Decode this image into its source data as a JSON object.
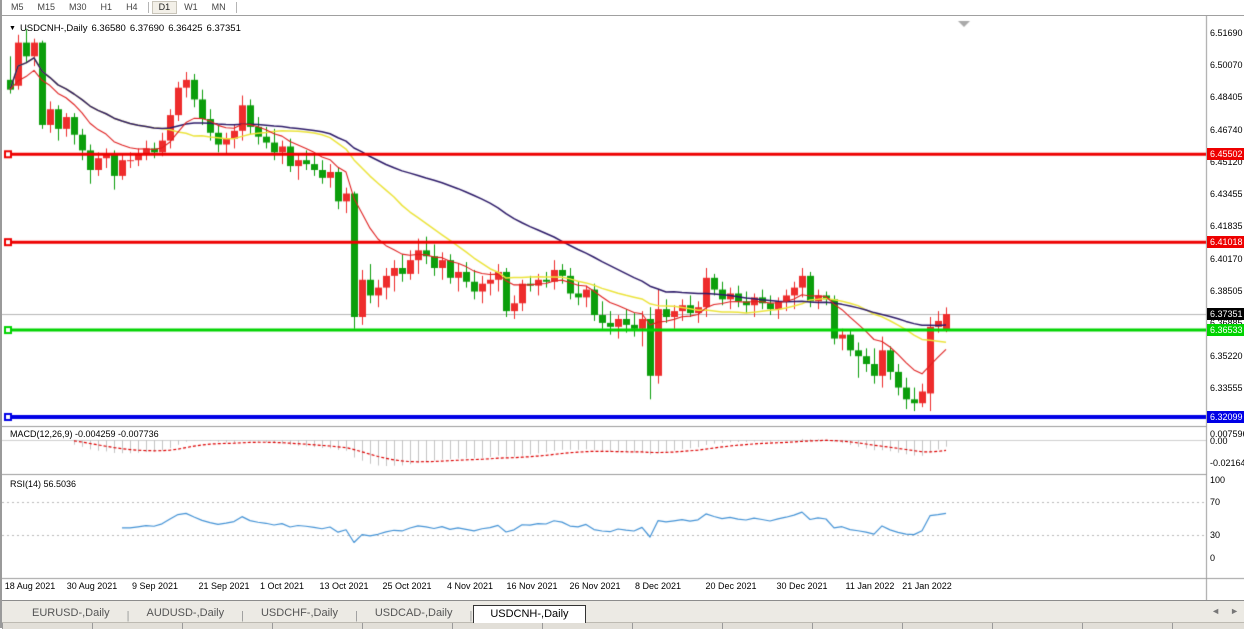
{
  "toolbar": {
    "timeframes": [
      {
        "label": "M5",
        "active": false
      },
      {
        "label": "M15",
        "active": false
      },
      {
        "label": "M30",
        "active": false
      },
      {
        "label": "H1",
        "active": false
      },
      {
        "label": "H4",
        "active": false
      },
      {
        "label": "D1",
        "active": true
      },
      {
        "label": "W1",
        "active": false
      },
      {
        "label": "MN",
        "active": false
      }
    ]
  },
  "chart": {
    "title": {
      "dropdown_icon": "▼",
      "symbol": "USDCNH-,Daily",
      "open": "6.36580",
      "high": "6.37690",
      "low": "6.36425",
      "close": "6.37351"
    },
    "price_axis_labels": [
      "6.51690",
      "6.50070",
      "6.48405",
      "6.46740",
      "6.45120",
      "6.43455",
      "6.41835",
      "6.40170",
      "6.38505",
      "6.36885",
      "6.35220",
      "6.33555"
    ],
    "hlines": [
      {
        "label": "6.45502",
        "value": 6.45502,
        "color": "#ee0000",
        "width": 3
      },
      {
        "label": "6.41018",
        "value": 6.41018,
        "color": "#ee0000",
        "width": 3
      },
      {
        "label": "6.36533",
        "value": 6.36533,
        "color": "#00d300",
        "width": 3
      },
      {
        "label": "6.32099",
        "value": 6.32099,
        "color": "#0000e6",
        "width": 4
      }
    ],
    "current_price": {
      "label": "6.37351",
      "value": 6.37351,
      "badge_color": "#000000",
      "line_color": "#b4b4b4"
    },
    "date_labels": [
      "18 Aug 2021",
      "30 Aug 2021",
      "9 Sep 2021",
      "21 Sep 2021",
      "1 Oct 2021",
      "13 Oct 2021",
      "25 Oct 2021",
      "4 Nov 2021",
      "16 Nov 2021",
      "26 Nov 2021",
      "8 Dec 2021",
      "20 Dec 2021",
      "30 Dec 2021",
      "11 Jan 2022",
      "21 Jan 2022"
    ],
    "colors": {
      "candle_up": "#ee2c2c",
      "candle_down": "#0b9e0b",
      "ma_fast": "#e02020",
      "ma_mid": "#ece43c",
      "ma_slow": "#2d1b69",
      "macd_hist": "#c4c4c4",
      "macd_signal": "#dd0000",
      "rsi_line": "#4493d6",
      "grid_dashed": "#b8b8b8",
      "separator": "#9c9c9c",
      "scroll_marker": "#aaaaaa"
    }
  },
  "macd_panel": {
    "label": "MACD(12,26,9) -0.004259 -0.007736",
    "axis_labels": [
      "0.007596",
      "0.00",
      "-0.02164"
    ]
  },
  "rsi_panel": {
    "label": "RSI(14) 56.5036",
    "axis_labels": [
      "100",
      "70",
      "30",
      "0"
    ]
  },
  "bottom_tabs": [
    {
      "label": "EURUSD-,Daily",
      "active": false
    },
    {
      "label": "AUDUSD-,Daily",
      "active": false
    },
    {
      "label": "USDCHF-,Daily",
      "active": false
    },
    {
      "label": "USDCAD-,Daily",
      "active": false
    },
    {
      "label": "USDCNH-,Daily",
      "active": true
    }
  ],
  "tab_scroll_icons": {
    "left": "◄",
    "right": "►"
  },
  "chart_data": {
    "type": "candlestick",
    "symbol": "USDCNH",
    "timeframe": "Daily",
    "last_bar": {
      "open": 6.3658,
      "high": 6.3769,
      "low": 6.36425,
      "close": 6.37351
    },
    "support_resistance_levels": [
      6.45502,
      6.41018,
      6.36533,
      6.32099
    ],
    "indicators": [
      {
        "name": "MACD",
        "params": "12,26,9",
        "main": -0.004259,
        "signal": -0.007736,
        "scale_max": 0.007596,
        "scale_min": -0.02164
      },
      {
        "name": "RSI",
        "params": "14",
        "value": 56.5036,
        "levels": [
          70,
          30
        ]
      }
    ],
    "x_range": [
      "18 Aug 2021",
      "28 Jan 2022"
    ],
    "y_range": [
      6.313,
      6.521
    ],
    "candles": [
      [
        6.493,
        6.505,
        6.486,
        6.488
      ],
      [
        6.49,
        6.516,
        6.488,
        6.512
      ],
      [
        6.512,
        6.519,
        6.502,
        6.505
      ],
      [
        6.505,
        6.514,
        6.5,
        6.512
      ],
      [
        6.512,
        6.513,
        6.468,
        6.47
      ],
      [
        6.47,
        6.482,
        6.466,
        6.478
      ],
      [
        6.478,
        6.48,
        6.462,
        6.468
      ],
      [
        6.468,
        6.476,
        6.464,
        6.474
      ],
      [
        6.474,
        6.476,
        6.46,
        6.465
      ],
      [
        6.465,
        6.468,
        6.452,
        6.457
      ],
      [
        6.457,
        6.46,
        6.44,
        6.447
      ],
      [
        6.447,
        6.456,
        6.444,
        6.453
      ],
      [
        6.453,
        6.458,
        6.448,
        6.455
      ],
      [
        6.455,
        6.457,
        6.437,
        6.444
      ],
      [
        6.444,
        6.455,
        6.442,
        6.452
      ],
      [
        6.452,
        6.456,
        6.448,
        6.452
      ],
      [
        6.452,
        6.458,
        6.449,
        6.455
      ],
      [
        6.455,
        6.462,
        6.452,
        6.458
      ],
      [
        6.458,
        6.461,
        6.453,
        6.456
      ],
      [
        6.456,
        6.466,
        6.454,
        6.462
      ],
      [
        6.462,
        6.478,
        6.458,
        6.475
      ],
      [
        6.475,
        6.492,
        6.472,
        6.489
      ],
      [
        6.489,
        6.497,
        6.484,
        6.493
      ],
      [
        6.493,
        6.496,
        6.479,
        6.483
      ],
      [
        6.483,
        6.488,
        6.47,
        6.473
      ],
      [
        6.473,
        6.478,
        6.462,
        6.466
      ],
      [
        6.466,
        6.47,
        6.456,
        6.46
      ],
      [
        6.46,
        6.466,
        6.455,
        6.463
      ],
      [
        6.463,
        6.47,
        6.458,
        6.467
      ],
      [
        6.467,
        6.485,
        6.462,
        6.48
      ],
      [
        6.48,
        6.483,
        6.465,
        6.469
      ],
      [
        6.469,
        6.474,
        6.46,
        6.464
      ],
      [
        6.464,
        6.469,
        6.458,
        6.461
      ],
      [
        6.461,
        6.468,
        6.452,
        6.456
      ],
      [
        6.456,
        6.462,
        6.45,
        6.459
      ],
      [
        6.459,
        6.463,
        6.446,
        6.449
      ],
      [
        6.449,
        6.455,
        6.442,
        6.452
      ],
      [
        6.452,
        6.457,
        6.447,
        6.45
      ],
      [
        6.45,
        6.456,
        6.444,
        6.447
      ],
      [
        6.447,
        6.452,
        6.44,
        6.443
      ],
      [
        6.443,
        6.45,
        6.438,
        6.446
      ],
      [
        6.446,
        6.448,
        6.427,
        6.431
      ],
      [
        6.431,
        6.438,
        6.425,
        6.435
      ],
      [
        6.435,
        6.436,
        6.366,
        6.372
      ],
      [
        6.372,
        6.396,
        6.368,
        6.391
      ],
      [
        6.391,
        6.399,
        6.379,
        6.383
      ],
      [
        6.383,
        6.391,
        6.377,
        6.387
      ],
      [
        6.387,
        6.397,
        6.381,
        6.393
      ],
      [
        6.393,
        6.401,
        6.385,
        6.397
      ],
      [
        6.397,
        6.404,
        6.39,
        6.394
      ],
      [
        6.394,
        6.406,
        6.391,
        6.401
      ],
      [
        6.401,
        6.412,
        6.394,
        6.406
      ],
      [
        6.406,
        6.413,
        6.399,
        6.403
      ],
      [
        6.403,
        6.409,
        6.393,
        6.397
      ],
      [
        6.397,
        6.405,
        6.391,
        6.401
      ],
      [
        6.401,
        6.404,
        6.389,
        6.392
      ],
      [
        6.392,
        6.399,
        6.385,
        6.395
      ],
      [
        6.395,
        6.4,
        6.387,
        6.39
      ],
      [
        6.39,
        6.396,
        6.381,
        6.385
      ],
      [
        6.385,
        6.393,
        6.379,
        6.389
      ],
      [
        6.389,
        6.395,
        6.383,
        6.391
      ],
      [
        6.391,
        6.399,
        6.385,
        6.395
      ],
      [
        6.395,
        6.397,
        6.372,
        6.375
      ],
      [
        6.375,
        6.383,
        6.371,
        6.379
      ],
      [
        6.379,
        6.391,
        6.375,
        6.389
      ],
      [
        6.389,
        6.393,
        6.385,
        6.388
      ],
      [
        6.388,
        6.394,
        6.383,
        6.391
      ],
      [
        6.391,
        6.395,
        6.387,
        6.39
      ],
      [
        6.39,
        6.401,
        6.386,
        6.396
      ],
      [
        6.396,
        6.399,
        6.389,
        6.393
      ],
      [
        6.393,
        6.397,
        6.381,
        6.384
      ],
      [
        6.384,
        6.39,
        6.378,
        6.382
      ],
      [
        6.382,
        6.388,
        6.377,
        6.386
      ],
      [
        6.386,
        6.389,
        6.37,
        6.373
      ],
      [
        6.373,
        6.38,
        6.366,
        6.369
      ],
      [
        6.369,
        6.375,
        6.363,
        6.367
      ],
      [
        6.367,
        6.373,
        6.361,
        6.371
      ],
      [
        6.371,
        6.376,
        6.364,
        6.368
      ],
      [
        6.368,
        6.374,
        6.362,
        6.366
      ],
      [
        6.366,
        6.375,
        6.357,
        6.371
      ],
      [
        6.371,
        6.377,
        6.33,
        6.342
      ],
      [
        6.342,
        6.386,
        6.338,
        6.376
      ],
      [
        6.376,
        6.381,
        6.369,
        6.372
      ],
      [
        6.372,
        6.378,
        6.366,
        6.375
      ],
      [
        6.375,
        6.381,
        6.37,
        6.378
      ],
      [
        6.378,
        6.383,
        6.372,
        6.374
      ],
      [
        6.374,
        6.38,
        6.369,
        6.377
      ],
      [
        6.377,
        6.397,
        6.372,
        6.392
      ],
      [
        6.392,
        6.394,
        6.383,
        6.386
      ],
      [
        6.386,
        6.39,
        6.378,
        6.381
      ],
      [
        6.381,
        6.387,
        6.376,
        6.384
      ],
      [
        6.384,
        6.388,
        6.377,
        6.38
      ],
      [
        6.38,
        6.385,
        6.374,
        6.378
      ],
      [
        6.378,
        6.384,
        6.372,
        6.382
      ],
      [
        6.382,
        6.386,
        6.376,
        6.379
      ],
      [
        6.379,
        6.383,
        6.373,
        6.376
      ],
      [
        6.376,
        6.382,
        6.371,
        6.38
      ],
      [
        6.38,
        6.386,
        6.375,
        6.383
      ],
      [
        6.383,
        6.39,
        6.376,
        6.387
      ],
      [
        6.387,
        6.397,
        6.382,
        6.393
      ],
      [
        6.393,
        6.395,
        6.377,
        6.38
      ],
      [
        6.38,
        6.386,
        6.376,
        6.383
      ],
      [
        6.383,
        6.385,
        6.378,
        6.381
      ],
      [
        6.381,
        6.383,
        6.358,
        6.361
      ],
      [
        6.361,
        6.366,
        6.355,
        6.363
      ],
      [
        6.363,
        6.365,
        6.352,
        6.355
      ],
      [
        6.355,
        6.359,
        6.341,
        6.352
      ],
      [
        6.352,
        6.356,
        6.344,
        6.348
      ],
      [
        6.348,
        6.356,
        6.338,
        6.342
      ],
      [
        6.342,
        6.362,
        6.336,
        6.355
      ],
      [
        6.355,
        6.357,
        6.34,
        6.344
      ],
      [
        6.344,
        6.348,
        6.332,
        6.336
      ],
      [
        6.336,
        6.341,
        6.325,
        6.33
      ],
      [
        6.33,
        6.336,
        6.324,
        6.328
      ],
      [
        6.328,
        6.338,
        6.326,
        6.334
      ],
      [
        6.333,
        6.372,
        6.324,
        6.367
      ],
      [
        6.367,
        6.375,
        6.364,
        6.37
      ],
      [
        6.3658,
        6.3769,
        6.36425,
        6.37351
      ]
    ]
  }
}
